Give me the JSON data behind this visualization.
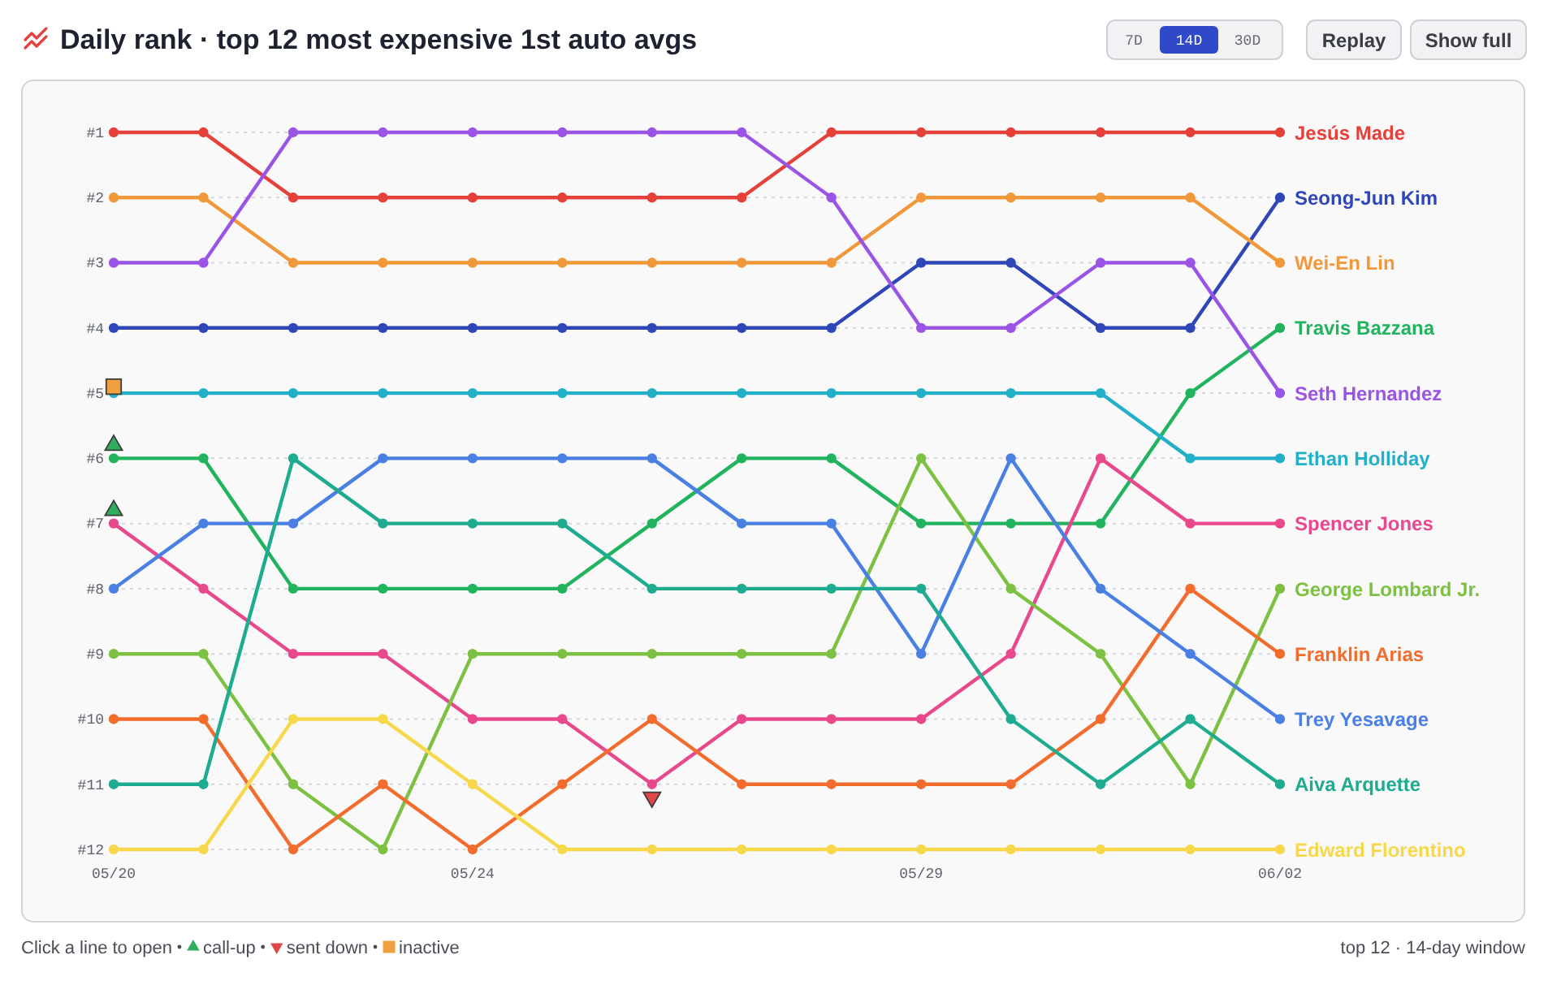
{
  "chart_data": {
    "type": "line",
    "title": "Daily rank · top 12 most expensive 1st auto avgs",
    "x": [
      "--05-20",
      "--05-21",
      "--05-22",
      "--05-23",
      "--05-24",
      "--05-25",
      "--05-26",
      "--05-27",
      "--05-28",
      "--05-29",
      "--05-30",
      "--05-31",
      "--06-01",
      "--06-02"
    ],
    "xlim": [
      "--05-20",
      "--06-02"
    ],
    "xticks": [
      {
        "value": "--05-20",
        "label": "05/20"
      },
      {
        "value": "--05-24",
        "label": "05/24"
      },
      {
        "value": "--05-29",
        "label": "05/29"
      },
      {
        "value": "--06-02",
        "label": "06/02"
      }
    ],
    "ylim": [
      12,
      1
    ],
    "yticks": [
      {
        "value": 1,
        "label": "#1"
      },
      {
        "value": 2,
        "label": "#2"
      },
      {
        "value": 3,
        "label": "#3"
      },
      {
        "value": 4,
        "label": "#4"
      },
      {
        "value": 5,
        "label": "#5"
      },
      {
        "value": 6,
        "label": "#6"
      },
      {
        "value": 7,
        "label": "#7"
      },
      {
        "value": 8,
        "label": "#8"
      },
      {
        "value": 9,
        "label": "#9"
      },
      {
        "value": 10,
        "label": "#10"
      },
      {
        "value": 11,
        "label": "#11"
      },
      {
        "value": 12,
        "label": "#12"
      }
    ],
    "grid": "y",
    "marker": "circle",
    "legend": "bottom left",
    "annotations": [
      "7D",
      "14D",
      "30D",
      "Replay",
      "Show full",
      "Click a line to open",
      "top 12 · 14-day window"
    ],
    "series": [
      {
        "name": "Jesús Made",
        "color": "#e5403a",
        "values": [
          1,
          1,
          2,
          2,
          2,
          2,
          2,
          2,
          1,
          1,
          1,
          1,
          1,
          1
        ]
      },
      {
        "name": "Seong-Jun Kim",
        "color": "#2f46b8",
        "values": [
          4,
          4,
          4,
          4,
          4,
          4,
          4,
          4,
          4,
          3,
          3,
          4,
          4,
          2
        ]
      },
      {
        "name": "Wei-En Lin",
        "color": "#f0983a",
        "values": [
          2,
          2,
          3,
          3,
          3,
          3,
          3,
          3,
          3,
          2,
          2,
          2,
          2,
          3
        ]
      },
      {
        "name": "Travis Bazzana",
        "color": "#22b35e",
        "values": [
          6,
          6,
          8,
          8,
          8,
          8,
          7,
          6,
          6,
          7,
          7,
          7,
          5,
          4
        ]
      },
      {
        "name": "Seth Hernandez",
        "color": "#9b55e6",
        "values": [
          3,
          3,
          1,
          1,
          1,
          1,
          1,
          1,
          2,
          4,
          4,
          3,
          3,
          5
        ]
      },
      {
        "name": "Ethan Holliday",
        "color": "#22b0c9",
        "values": [
          5,
          5,
          5,
          5,
          5,
          5,
          5,
          5,
          5,
          5,
          5,
          5,
          6,
          6
        ]
      },
      {
        "name": "Spencer Jones",
        "color": "#e8488c",
        "values": [
          7,
          8,
          9,
          9,
          10,
          10,
          11,
          10,
          10,
          10,
          9,
          6,
          7,
          7
        ]
      },
      {
        "name": "George Lombard Jr.",
        "color": "#7cc142",
        "values": [
          9,
          9,
          11,
          12,
          9,
          9,
          9,
          9,
          9,
          6,
          8,
          9,
          11,
          8
        ]
      },
      {
        "name": "Franklin Arias",
        "color": "#f26d2d",
        "values": [
          10,
          10,
          12,
          11,
          12,
          11,
          10,
          11,
          11,
          11,
          11,
          10,
          8,
          9
        ]
      },
      {
        "name": "Trey Yesavage",
        "color": "#4a80e3",
        "values": [
          8,
          7,
          7,
          6,
          6,
          6,
          6,
          7,
          7,
          9,
          6,
          8,
          9,
          10
        ]
      },
      {
        "name": "Aiva Arquette",
        "color": "#1eab8f",
        "values": [
          11,
          11,
          6,
          7,
          7,
          7,
          8,
          8,
          8,
          8,
          10,
          11,
          10,
          11
        ]
      },
      {
        "name": "Edward Florentino",
        "color": "#f7d84a",
        "values": [
          12,
          12,
          10,
          10,
          11,
          12,
          12,
          12,
          12,
          12,
          12,
          12,
          12,
          12
        ]
      },
      {
        "name": "call-up",
        "type": "scatter",
        "marker": "triangle",
        "color": "#2fae5f",
        "x": [
          "--05-20",
          "--05-20"
        ],
        "values": [
          5.8,
          6.8
        ]
      },
      {
        "name": "sent down",
        "type": "scatter",
        "marker": "triangle-down",
        "color": "#e04848",
        "x": [
          "--05-26"
        ],
        "values": [
          11.2
        ]
      },
      {
        "name": "inactive",
        "type": "scatter",
        "marker": "square",
        "color": "#f0a040",
        "x": [
          "--05-20"
        ],
        "values": [
          4.9
        ]
      }
    ]
  }
}
